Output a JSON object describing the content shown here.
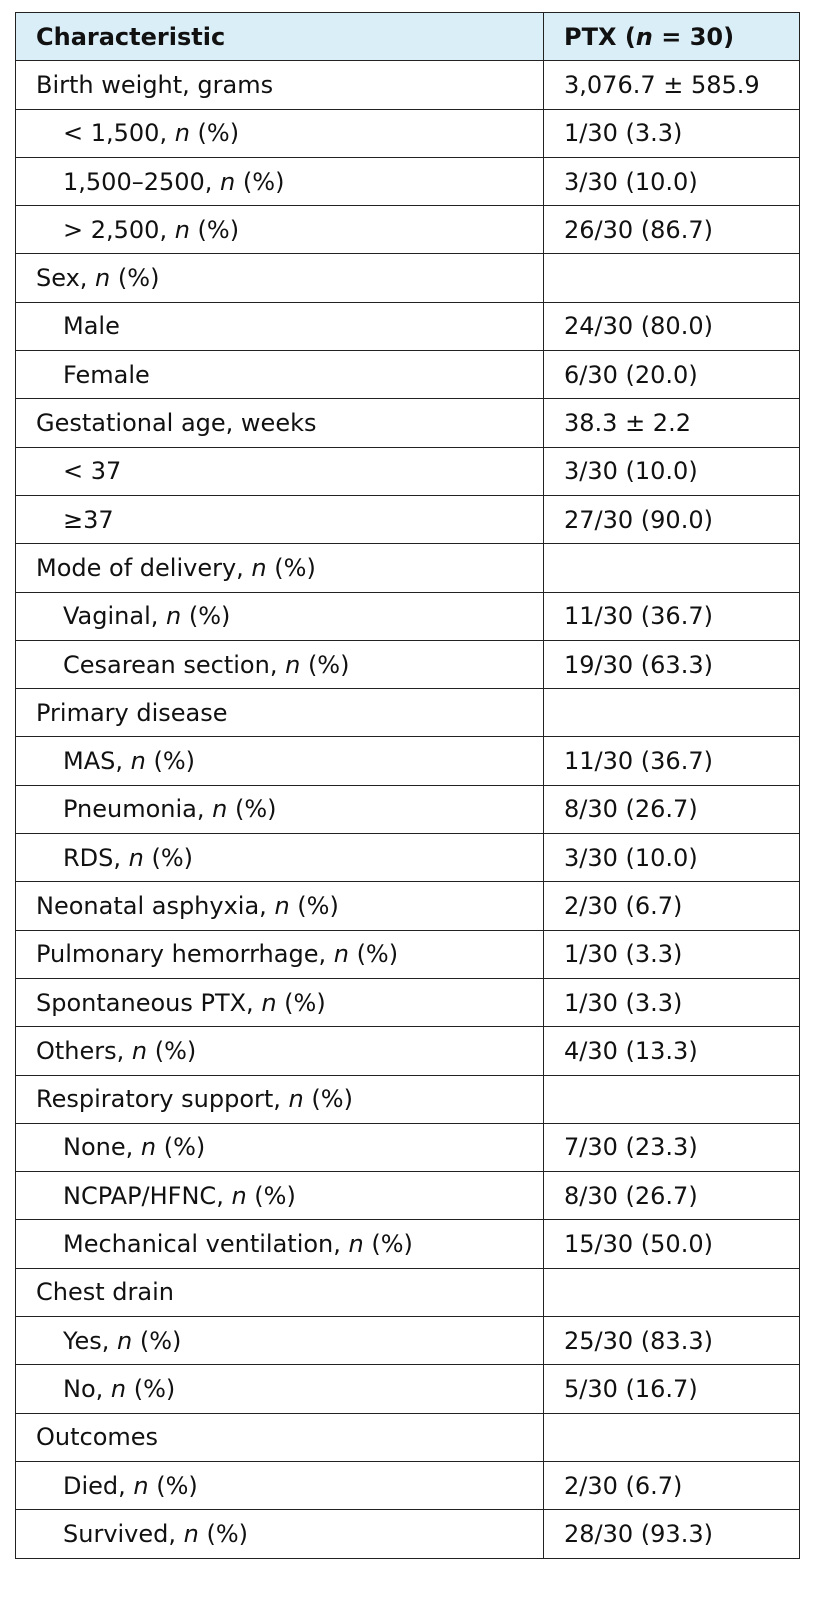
{
  "table": {
    "header": {
      "characteristic": "Characteristic",
      "ptx_prefix": "PTX (",
      "ptx_n": "n",
      "ptx_suffix": " = 30)"
    },
    "rows": [
      {
        "label": "Birth weight, grams",
        "n": "",
        "label_tail": "",
        "value": "3,076.7 ± 585.9",
        "indent": false
      },
      {
        "label": "< 1,500, ",
        "n": "n",
        "label_tail": " (%)",
        "value": "1/30 (3.3)",
        "indent": true
      },
      {
        "label": "1,500–2500, ",
        "n": "n",
        "label_tail": " (%)",
        "value": "3/30 (10.0)",
        "indent": true
      },
      {
        "label": "> 2,500, ",
        "n": "n",
        "label_tail": " (%)",
        "value": "26/30 (86.7)",
        "indent": true
      },
      {
        "label": "Sex, ",
        "n": "n",
        "label_tail": " (%)",
        "value": "",
        "indent": false
      },
      {
        "label": "Male",
        "n": "",
        "label_tail": "",
        "value": "24/30 (80.0)",
        "indent": true
      },
      {
        "label": "Female",
        "n": "",
        "label_tail": "",
        "value": "6/30 (20.0)",
        "indent": true
      },
      {
        "label": "Gestational age, weeks",
        "n": "",
        "label_tail": "",
        "value": "38.3 ± 2.2",
        "indent": false
      },
      {
        "label": "< 37",
        "n": "",
        "label_tail": "",
        "value": "3/30 (10.0)",
        "indent": true
      },
      {
        "label": "≥37",
        "n": "",
        "label_tail": "",
        "value": "27/30 (90.0)",
        "indent": true
      },
      {
        "label": "Mode of delivery, ",
        "n": "n",
        "label_tail": " (%)",
        "value": "",
        "indent": false
      },
      {
        "label": "Vaginal, ",
        "n": "n",
        "label_tail": " (%)",
        "value": "11/30 (36.7)",
        "indent": true
      },
      {
        "label": "Cesarean section, ",
        "n": "n",
        "label_tail": " (%)",
        "value": "19/30 (63.3)",
        "indent": true
      },
      {
        "label": "Primary disease",
        "n": "",
        "label_tail": "",
        "value": "",
        "indent": false
      },
      {
        "label": "MAS, ",
        "n": "n",
        "label_tail": " (%)",
        "value": "11/30 (36.7)",
        "indent": true
      },
      {
        "label": "Pneumonia, ",
        "n": "n",
        "label_tail": " (%)",
        "value": "8/30 (26.7)",
        "indent": true
      },
      {
        "label": "RDS, ",
        "n": "n",
        "label_tail": " (%)",
        "value": "3/30 (10.0)",
        "indent": true
      },
      {
        "label": "Neonatal asphyxia, ",
        "n": "n",
        "label_tail": " (%)",
        "value": "2/30 (6.7)",
        "indent": false
      },
      {
        "label": "Pulmonary hemorrhage, ",
        "n": "n",
        "label_tail": " (%)",
        "value": "1/30 (3.3)",
        "indent": false
      },
      {
        "label": "Spontaneous PTX, ",
        "n": "n",
        "label_tail": " (%)",
        "value": "1/30 (3.3)",
        "indent": false
      },
      {
        "label": "Others, ",
        "n": "n",
        "label_tail": " (%)",
        "value": "4/30 (13.3)",
        "indent": false
      },
      {
        "label": "Respiratory support, ",
        "n": "n",
        "label_tail": " (%)",
        "value": "",
        "indent": false
      },
      {
        "label": "None, ",
        "n": "n",
        "label_tail": " (%)",
        "value": "7/30 (23.3)",
        "indent": true
      },
      {
        "label": "NCPAP/HFNC, ",
        "n": "n",
        "label_tail": " (%)",
        "value": "8/30 (26.7)",
        "indent": true
      },
      {
        "label": "Mechanical ventilation, ",
        "n": "n",
        "label_tail": " (%)",
        "value": "15/30 (50.0)",
        "indent": true
      },
      {
        "label": "Chest drain",
        "n": "",
        "label_tail": "",
        "value": "",
        "indent": false
      },
      {
        "label": "Yes, ",
        "n": "n",
        "label_tail": " (%)",
        "value": "25/30 (83.3)",
        "indent": true
      },
      {
        "label": "No, ",
        "n": "n",
        "label_tail": " (%)",
        "value": "5/30 (16.7)",
        "indent": true
      },
      {
        "label": "Outcomes",
        "n": "",
        "label_tail": "",
        "value": "",
        "indent": false
      },
      {
        "label": "Died, ",
        "n": "n",
        "label_tail": " (%)",
        "value": "2/30 (6.7)",
        "indent": true
      },
      {
        "label": "Survived, ",
        "n": "n",
        "label_tail": " (%)",
        "value": "28/30 (93.3)",
        "indent": true
      }
    ]
  },
  "colors": {
    "header_background": "#daeef8",
    "border": "#222222"
  }
}
